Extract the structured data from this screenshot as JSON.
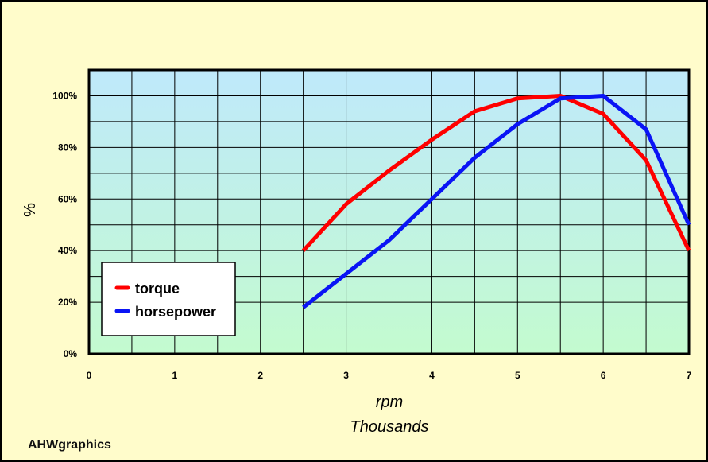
{
  "brand": "AHWgraphics",
  "colors": {
    "page_bg": "#fffccb",
    "plot_top": "#bfe9fb",
    "plot_bottom": "#c3fbcf",
    "torque": "#ff0000",
    "horsepower": "#0a14f5"
  },
  "chart_data": {
    "type": "line",
    "title": "",
    "xlabel": "rpm",
    "xlabel_sub": "Thousands",
    "ylabel": "%",
    "xlim": [
      0,
      7
    ],
    "ylim": [
      0,
      110
    ],
    "x_ticks": [
      "0",
      "1",
      "2",
      "3",
      "4",
      "5",
      "6",
      "7"
    ],
    "y_ticks": [
      "0%",
      "20%",
      "40%",
      "60%",
      "80%",
      "100%"
    ],
    "grid": true,
    "legend_position": "lower-left",
    "series": [
      {
        "name": "torque",
        "color": "#ff0000",
        "x": [
          2.5,
          3,
          3.5,
          4,
          4.5,
          5,
          5.5,
          6,
          6.5,
          7
        ],
        "y": [
          40,
          58,
          71,
          83,
          94,
          99,
          100,
          93,
          75,
          40
        ]
      },
      {
        "name": "horsepower",
        "color": "#0a14f5",
        "x": [
          2.5,
          3,
          3.5,
          4,
          4.5,
          5,
          5.5,
          6,
          6.5,
          7
        ],
        "y": [
          18,
          31,
          44,
          60,
          76,
          89,
          99,
          100,
          87,
          50
        ]
      }
    ]
  }
}
